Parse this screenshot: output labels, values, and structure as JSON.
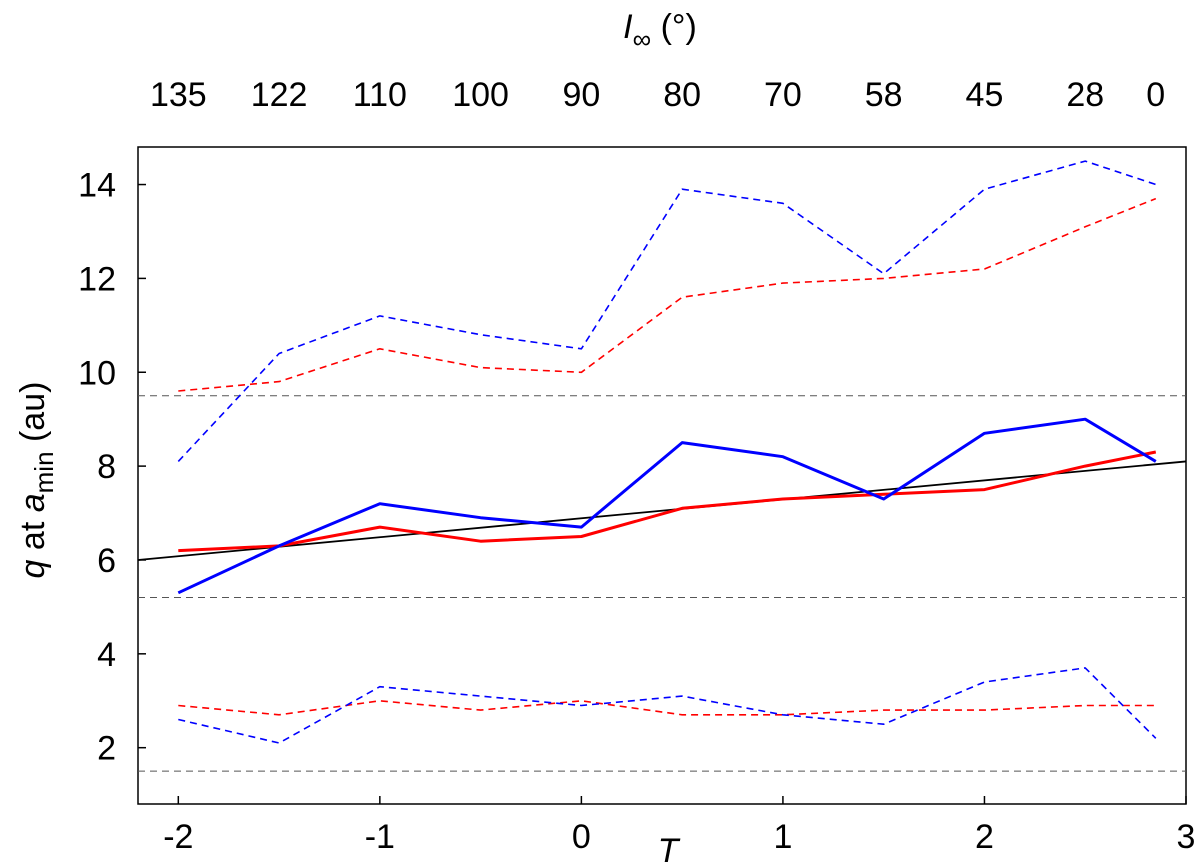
{
  "chart_data": {
    "type": "line",
    "xlabel": "T",
    "ylabel_parts": {
      "q": "q",
      "at": " at ",
      "a": "a",
      "sub": "min",
      "unit": " (au)"
    },
    "top_label_parts": {
      "I": "I",
      "sub": "∞",
      "unit": " (°)"
    },
    "xlim": [
      -2.2,
      3.0
    ],
    "ylim": [
      0.8,
      14.8
    ],
    "x_ticks": [
      -2,
      -1,
      0,
      1,
      2,
      3
    ],
    "y_ticks": [
      2,
      4,
      6,
      8,
      10,
      12,
      14
    ],
    "top_ticks": [
      {
        "x": -2,
        "label": "135"
      },
      {
        "x": -1.5,
        "label": "122"
      },
      {
        "x": -1,
        "label": "110"
      },
      {
        "x": -0.5,
        "label": "100"
      },
      {
        "x": 0,
        "label": "90"
      },
      {
        "x": 0.5,
        "label": "80"
      },
      {
        "x": 1,
        "label": "70"
      },
      {
        "x": 1.5,
        "label": "58"
      },
      {
        "x": 2,
        "label": "45"
      },
      {
        "x": 2.5,
        "label": "28"
      },
      {
        "x": 2.85,
        "label": "0"
      }
    ],
    "hlines": [
      9.5,
      5.2,
      1.5
    ],
    "fit_line": {
      "x": [
        -2.2,
        3.0
      ],
      "y": [
        6.0,
        8.1
      ],
      "color": "#000000"
    },
    "series": [
      {
        "color": "#ff0000",
        "style": "solid",
        "x": [
          -2,
          -1.5,
          -1,
          -0.5,
          0,
          0.5,
          1,
          1.5,
          2,
          2.5,
          2.85
        ],
        "y": [
          6.2,
          6.3,
          6.7,
          6.4,
          6.5,
          7.1,
          7.3,
          7.4,
          7.5,
          8.0,
          8.3
        ]
      },
      {
        "color": "#0000ff",
        "style": "solid",
        "x": [
          -2,
          -1.5,
          -1,
          -0.5,
          0,
          0.5,
          1,
          1.5,
          2,
          2.5,
          2.85
        ],
        "y": [
          5.3,
          6.3,
          7.2,
          6.9,
          6.7,
          8.5,
          8.2,
          7.3,
          8.7,
          9.0,
          8.1
        ]
      },
      {
        "color": "#ff0000",
        "style": "dashed",
        "x": [
          -2,
          -1.5,
          -1,
          -0.5,
          0,
          0.5,
          1,
          1.5,
          2,
          2.5,
          2.85
        ],
        "y": [
          9.6,
          9.8,
          10.5,
          10.1,
          10.0,
          11.6,
          11.9,
          12.0,
          12.2,
          13.1,
          13.7
        ]
      },
      {
        "color": "#0000ff",
        "style": "dashed",
        "x": [
          -2,
          -1.5,
          -1,
          -0.5,
          0,
          0.5,
          1,
          1.5,
          2,
          2.5,
          2.85
        ],
        "y": [
          8.1,
          10.4,
          11.2,
          10.8,
          10.5,
          13.9,
          13.6,
          12.1,
          13.9,
          14.5,
          14.0
        ]
      },
      {
        "color": "#ff0000",
        "style": "dashed",
        "x": [
          -2,
          -1.5,
          -1,
          -0.5,
          0,
          0.5,
          1,
          1.5,
          2,
          2.5,
          2.85
        ],
        "y": [
          2.9,
          2.7,
          3.0,
          2.8,
          3.0,
          2.7,
          2.7,
          2.8,
          2.8,
          2.9,
          2.9
        ]
      },
      {
        "color": "#0000ff",
        "style": "dashed",
        "x": [
          -2,
          -1.5,
          -1,
          -0.5,
          0,
          0.5,
          1,
          1.5,
          2,
          2.5,
          2.85
        ],
        "y": [
          2.6,
          2.1,
          3.3,
          3.1,
          2.9,
          3.1,
          2.7,
          2.5,
          3.4,
          3.7,
          2.2
        ]
      }
    ]
  }
}
